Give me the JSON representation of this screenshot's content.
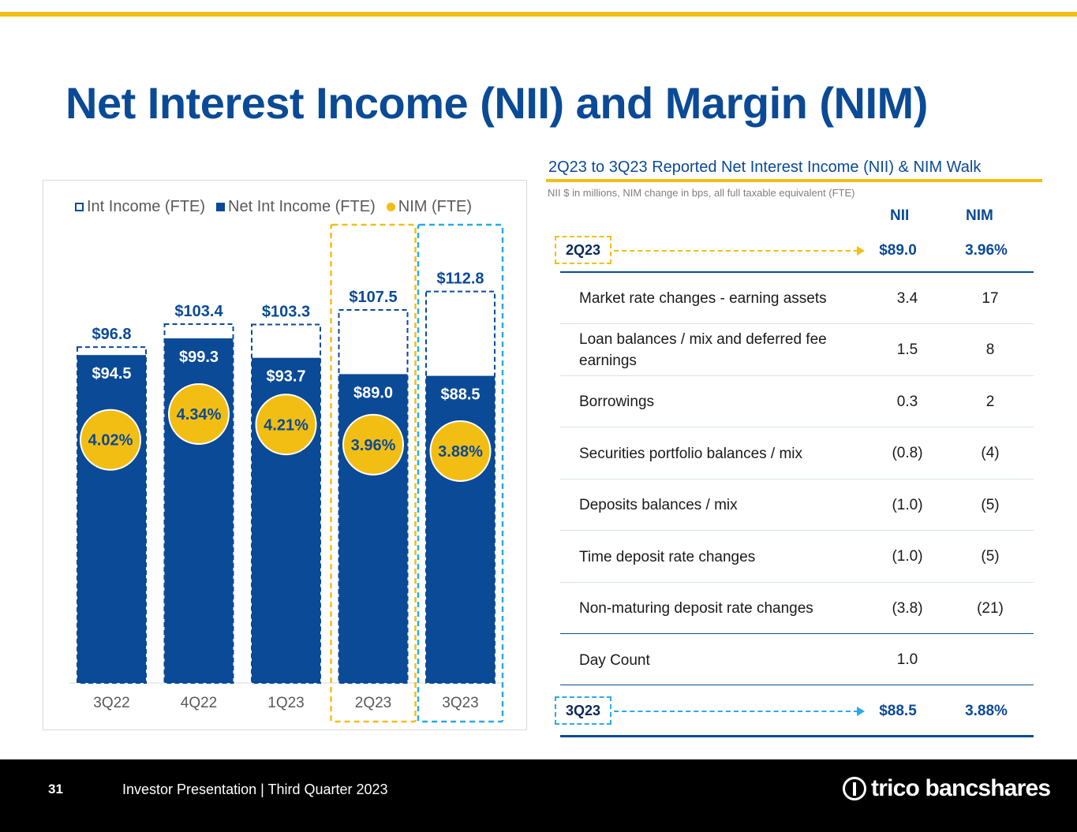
{
  "title": "Net Interest Income (NII) and Margin (NIM)",
  "legend": {
    "int_income": "Int Income (FTE)",
    "net_int_income": "Net Int Income (FTE)",
    "nim": "NIM (FTE)"
  },
  "colors": {
    "navy": "#0a4a96",
    "gold": "#f3be14",
    "light_blue": "#29abe2",
    "footer": "#000000"
  },
  "chart_data": {
    "type": "bar",
    "categories": [
      "3Q22",
      "4Q22",
      "1Q23",
      "2Q23",
      "3Q23"
    ],
    "series": [
      {
        "name": "Int Income (FTE)",
        "values": [
          96.8,
          103.4,
          103.3,
          107.5,
          112.8
        ],
        "labels": [
          "$96.8",
          "$103.4",
          "$103.3",
          "$107.5",
          "$112.8"
        ]
      },
      {
        "name": "Net Int Income (FTE)",
        "values": [
          94.5,
          99.3,
          93.7,
          89.0,
          88.5
        ],
        "labels": [
          "$94.5",
          "$99.3",
          "$93.7",
          "$89.0",
          "$88.5"
        ]
      },
      {
        "name": "NIM (FTE)",
        "values": [
          4.02,
          4.34,
          4.21,
          3.96,
          3.88
        ],
        "labels": [
          "4.02%",
          "4.34%",
          "4.21%",
          "3.96%",
          "3.88%"
        ]
      }
    ],
    "highlighted_categories": [
      {
        "category": "2Q23",
        "color": "gold"
      },
      {
        "category": "3Q23",
        "color": "light_blue"
      }
    ],
    "legend_position": "top",
    "grid": false
  },
  "walk": {
    "title": "2Q23 to 3Q23 Reported Net Interest Income (NII) & NIM Walk",
    "subtitle": "NII $ in millions, NIM change in bps, all full taxable equivalent (FTE)",
    "col_nii": "NII",
    "col_nim": "NIM",
    "start": {
      "label": "2Q23",
      "nii": "$89.0",
      "nim": "3.96%"
    },
    "rows": [
      {
        "label": "Market rate changes - earning assets",
        "nii": "3.4",
        "nim": "17"
      },
      {
        "label": "Loan balances / mix and deferred fee earnings",
        "nii": "1.5",
        "nim": "8"
      },
      {
        "label": "Borrowings",
        "nii": "0.3",
        "nim": "2"
      },
      {
        "label": "Securities portfolio balances / mix",
        "nii": "(0.8)",
        "nim": "(4)"
      },
      {
        "label": "Deposits balances / mix",
        "nii": "(1.0)",
        "nim": "(5)"
      },
      {
        "label": "Time deposit rate changes",
        "nii": "(1.0)",
        "nim": "(5)"
      },
      {
        "label": "Non-maturing deposit rate changes",
        "nii": "(3.8)",
        "nim": "(21)"
      },
      {
        "label": "Day Count",
        "nii": "1.0",
        "nim": ""
      }
    ],
    "end": {
      "label": "3Q23",
      "nii": "$88.5",
      "nim": "3.88%"
    }
  },
  "footer": {
    "page_number": "31",
    "text": "Investor Presentation | Third Quarter 2023",
    "brand": "trico bancshares"
  }
}
